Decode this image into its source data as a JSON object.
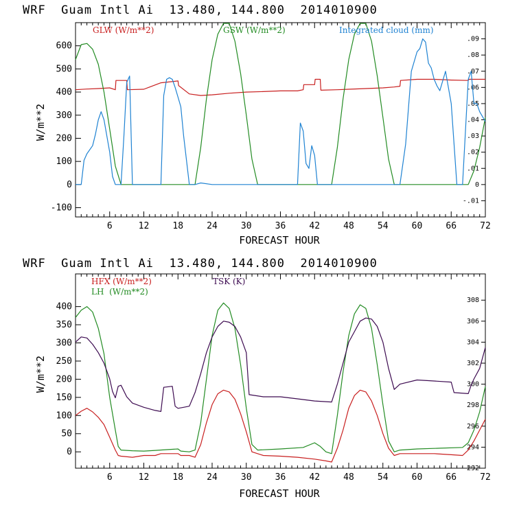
{
  "chart_data": [
    {
      "type": "line",
      "title": "WRF  Guam Intl Ai  13.480, 144.800  2014010900",
      "xlabel": "FORECAST HOUR",
      "ylabel": "W/m**2",
      "xlim": [
        0,
        72
      ],
      "ylim": [
        -140,
        700
      ],
      "y2lim": [
        -0.02,
        0.1
      ],
      "xticks": [
        "6",
        "12",
        "18",
        "24",
        "30",
        "36",
        "42",
        "48",
        "54",
        "60",
        "66",
        "72"
      ],
      "yticks": [
        "-100",
        "0",
        "100",
        "200",
        "300",
        "400",
        "500",
        "600"
      ],
      "y2ticks": [
        "-.01",
        "0",
        ".01",
        ".02",
        ".03",
        ".04",
        ".05",
        ".06",
        ".07",
        ".08",
        ".09"
      ],
      "legend": [
        {
          "label": "GLW (W/m**2)",
          "color": "#c81e1e"
        },
        {
          "label": "GSW (W/m**2)",
          "color": "#228b22"
        },
        {
          "label": "Integrated cloud (mm)",
          "color": "#1e82d2"
        }
      ],
      "series": [
        {
          "name": "GLW (W/m**2)",
          "axis": "left",
          "color": "#c81e1e",
          "x": [
            0,
            2,
            4,
            6,
            7,
            7.1,
            9,
            9.1,
            12,
            15,
            18,
            18.1,
            20,
            22,
            24,
            27,
            30,
            33,
            36,
            39,
            40,
            40.1,
            42,
            42.1,
            43,
            43.1,
            46,
            48,
            51,
            54,
            56,
            57,
            57.1,
            60,
            63,
            66,
            69,
            69.1,
            72
          ],
          "y": [
            410,
            413,
            415,
            418,
            410,
            450,
            450,
            410,
            412,
            440,
            448,
            428,
            392,
            385,
            388,
            395,
            400,
            402,
            405,
            405,
            410,
            432,
            432,
            455,
            455,
            408,
            410,
            412,
            415,
            418,
            422,
            425,
            450,
            455,
            455,
            452,
            450,
            455,
            455
          ]
        },
        {
          "name": "GSW (W/m**2)",
          "axis": "left",
          "color": "#228b22",
          "x": [
            0,
            1,
            2,
            3,
            4,
            5,
            6,
            7,
            8,
            9,
            10,
            12,
            14,
            16,
            18,
            20,
            21,
            22,
            23,
            24,
            25,
            26,
            27,
            28,
            29,
            30,
            31,
            32,
            33,
            36,
            40,
            44,
            45,
            46,
            47,
            48,
            49,
            50,
            51,
            52,
            53,
            54,
            55,
            56,
            57,
            60,
            64,
            68,
            69,
            70,
            71,
            72
          ],
          "y": [
            540,
            605,
            610,
            585,
            520,
            400,
            240,
            80,
            0,
            0,
            0,
            0,
            0,
            0,
            0,
            0,
            0,
            160,
            370,
            540,
            650,
            710,
            700,
            620,
            480,
            300,
            110,
            0,
            0,
            0,
            0,
            0,
            0,
            160,
            370,
            540,
            650,
            705,
            700,
            620,
            470,
            290,
            110,
            0,
            0,
            0,
            0,
            0,
            0,
            60,
            160,
            290
          ]
        },
        {
          "name": "Integrated cloud (mm)",
          "axis": "right",
          "color": "#1e82d2",
          "x": [
            0,
            1,
            1.5,
            2,
            3,
            3.5,
            4,
            4.5,
            5,
            6,
            6.5,
            7,
            8,
            8.5,
            9,
            9.5,
            10,
            12,
            14,
            15,
            15.5,
            16,
            16.5,
            17,
            17.5,
            18,
            18.5,
            19,
            20,
            21,
            22,
            24,
            30,
            38,
            39,
            39.5,
            40,
            40.5,
            41,
            41.5,
            42,
            42.5,
            43,
            44,
            48,
            54,
            57,
            58,
            59,
            60,
            60.5,
            61,
            61.5,
            62,
            62.5,
            63,
            63.5,
            64,
            65,
            66,
            67,
            68,
            69,
            69.5,
            70,
            70.5,
            71,
            72
          ],
          "y": [
            0,
            0,
            0.015,
            0.019,
            0.024,
            0.031,
            0.04,
            0.045,
            0.04,
            0.02,
            0.005,
            0,
            0,
            0.03,
            0.063,
            0.067,
            0,
            0,
            0,
            0,
            0.055,
            0.065,
            0.066,
            0.065,
            0.06,
            0.054,
            0.048,
            0.03,
            0,
            0,
            0.001,
            0,
            0,
            0,
            0,
            0.038,
            0.033,
            0.013,
            0.01,
            0.024,
            0.018,
            0,
            0,
            0,
            0,
            0,
            0,
            0.025,
            0.07,
            0.082,
            0.084,
            0.09,
            0.088,
            0.075,
            0.072,
            0.065,
            0.061,
            0.058,
            0.07,
            0.05,
            0,
            0,
            0.065,
            0.07,
            0.05,
            0.05,
            0.045,
            0.039
          ]
        }
      ]
    },
    {
      "type": "line",
      "title": "WRF  Guam Intl Ai  13.480, 144.800  2014010900",
      "xlabel": "FORECAST HOUR",
      "ylabel": "W/m**2",
      "xlim": [
        0,
        72
      ],
      "ylim": [
        -45,
        490
      ],
      "y2lim": [
        292,
        310.5
      ],
      "xticks": [
        "6",
        "12",
        "18",
        "24",
        "30",
        "36",
        "42",
        "48",
        "54",
        "60",
        "66",
        "72"
      ],
      "yticks": [
        "0",
        "50",
        "100",
        "150",
        "200",
        "250",
        "300",
        "350",
        "400"
      ],
      "y2ticks": [
        "292",
        "294",
        "296",
        "298",
        "300",
        "302",
        "304",
        "306",
        "308"
      ],
      "legend": [
        {
          "label": "HFX (W/m**2)",
          "color": "#c81e1e"
        },
        {
          "label": "LH  (W/m**2)",
          "color": "#228b22"
        },
        {
          "label": "TSK (K)",
          "color": "#3c0a50"
        }
      ],
      "series": [
        {
          "name": "HFX (W/m**2)",
          "axis": "left",
          "color": "#c81e1e",
          "x": [
            0,
            1,
            2,
            3,
            4,
            5,
            6,
            7,
            7.5,
            8,
            10,
            12,
            14,
            15,
            16,
            17,
            18,
            18.5,
            20,
            21,
            22,
            23,
            24,
            25,
            26,
            27,
            28,
            29,
            30,
            31,
            33,
            36,
            39,
            42,
            44,
            45,
            46,
            47,
            48,
            49,
            50,
            51,
            52,
            53,
            54,
            55,
            56,
            57,
            60,
            63,
            66,
            68,
            69,
            70,
            71,
            72
          ],
          "y": [
            100,
            112,
            120,
            110,
            95,
            75,
            40,
            5,
            -10,
            -12,
            -15,
            -10,
            -10,
            -5,
            -5,
            -5,
            -5,
            -10,
            -10,
            -15,
            20,
            80,
            130,
            160,
            170,
            165,
            145,
            105,
            55,
            0,
            -10,
            -12,
            -15,
            -20,
            -25,
            -28,
            10,
            60,
            120,
            155,
            170,
            165,
            140,
            100,
            50,
            10,
            -10,
            -5,
            -5,
            -5,
            -8,
            -10,
            5,
            30,
            60,
            90
          ]
        },
        {
          "name": "LH  (W/m**2)",
          "axis": "left",
          "color": "#228b22",
          "x": [
            0,
            1,
            2,
            3,
            4,
            5,
            6,
            7,
            7.5,
            8,
            10,
            12,
            14,
            16,
            18,
            18.5,
            20,
            21,
            22,
            23,
            24,
            25,
            26,
            27,
            28,
            29,
            30,
            31,
            32,
            36,
            40,
            42,
            43,
            44,
            45,
            46,
            47,
            48,
            49,
            50,
            51,
            52,
            53,
            54,
            55,
            56,
            57,
            60,
            64,
            68,
            69,
            70,
            71,
            72
          ],
          "y": [
            370,
            390,
            400,
            385,
            340,
            270,
            150,
            60,
            15,
            5,
            3,
            2,
            4,
            6,
            8,
            2,
            0,
            5,
            80,
            200,
            320,
            390,
            410,
            395,
            340,
            240,
            120,
            20,
            5,
            8,
            12,
            25,
            15,
            0,
            -5,
            100,
            220,
            320,
            380,
            405,
            395,
            340,
            240,
            130,
            30,
            0,
            5,
            8,
            10,
            12,
            25,
            60,
            110,
            180
          ]
        },
        {
          "name": "TSK (K)",
          "axis": "right",
          "color": "#3c0a50",
          "x": [
            0,
            1,
            2,
            3,
            4,
            5,
            6,
            6.5,
            7,
            7.5,
            8,
            9,
            10,
            12,
            14,
            15,
            15.5,
            17,
            17.5,
            18,
            19,
            20,
            21,
            22,
            23,
            24,
            25,
            26,
            27,
            28,
            29,
            30,
            30.5,
            33,
            36,
            39,
            42,
            45,
            46,
            47,
            48,
            49,
            50,
            51,
            52,
            53,
            54,
            55,
            56,
            57,
            60,
            63,
            66,
            66.5,
            69,
            69.5,
            70,
            71,
            72
          ],
          "y": [
            304,
            304.5,
            304.4,
            303.8,
            303,
            302,
            300.5,
            299.3,
            298.7,
            299.8,
            299.9,
            298.8,
            298.2,
            297.8,
            297.5,
            297.4,
            299.7,
            299.8,
            297.9,
            297.7,
            297.8,
            297.9,
            299.2,
            301,
            303,
            304.5,
            305.5,
            306,
            305.9,
            305.5,
            304.5,
            303,
            299,
            298.8,
            298.8,
            298.6,
            298.4,
            298.3,
            300,
            302,
            304,
            305,
            306,
            306.3,
            306.2,
            305.5,
            304,
            301.5,
            299.5,
            300,
            300.4,
            300.3,
            300.2,
            299.2,
            299.1,
            299.9,
            300.5,
            301.5,
            303.5
          ]
        }
      ]
    }
  ]
}
